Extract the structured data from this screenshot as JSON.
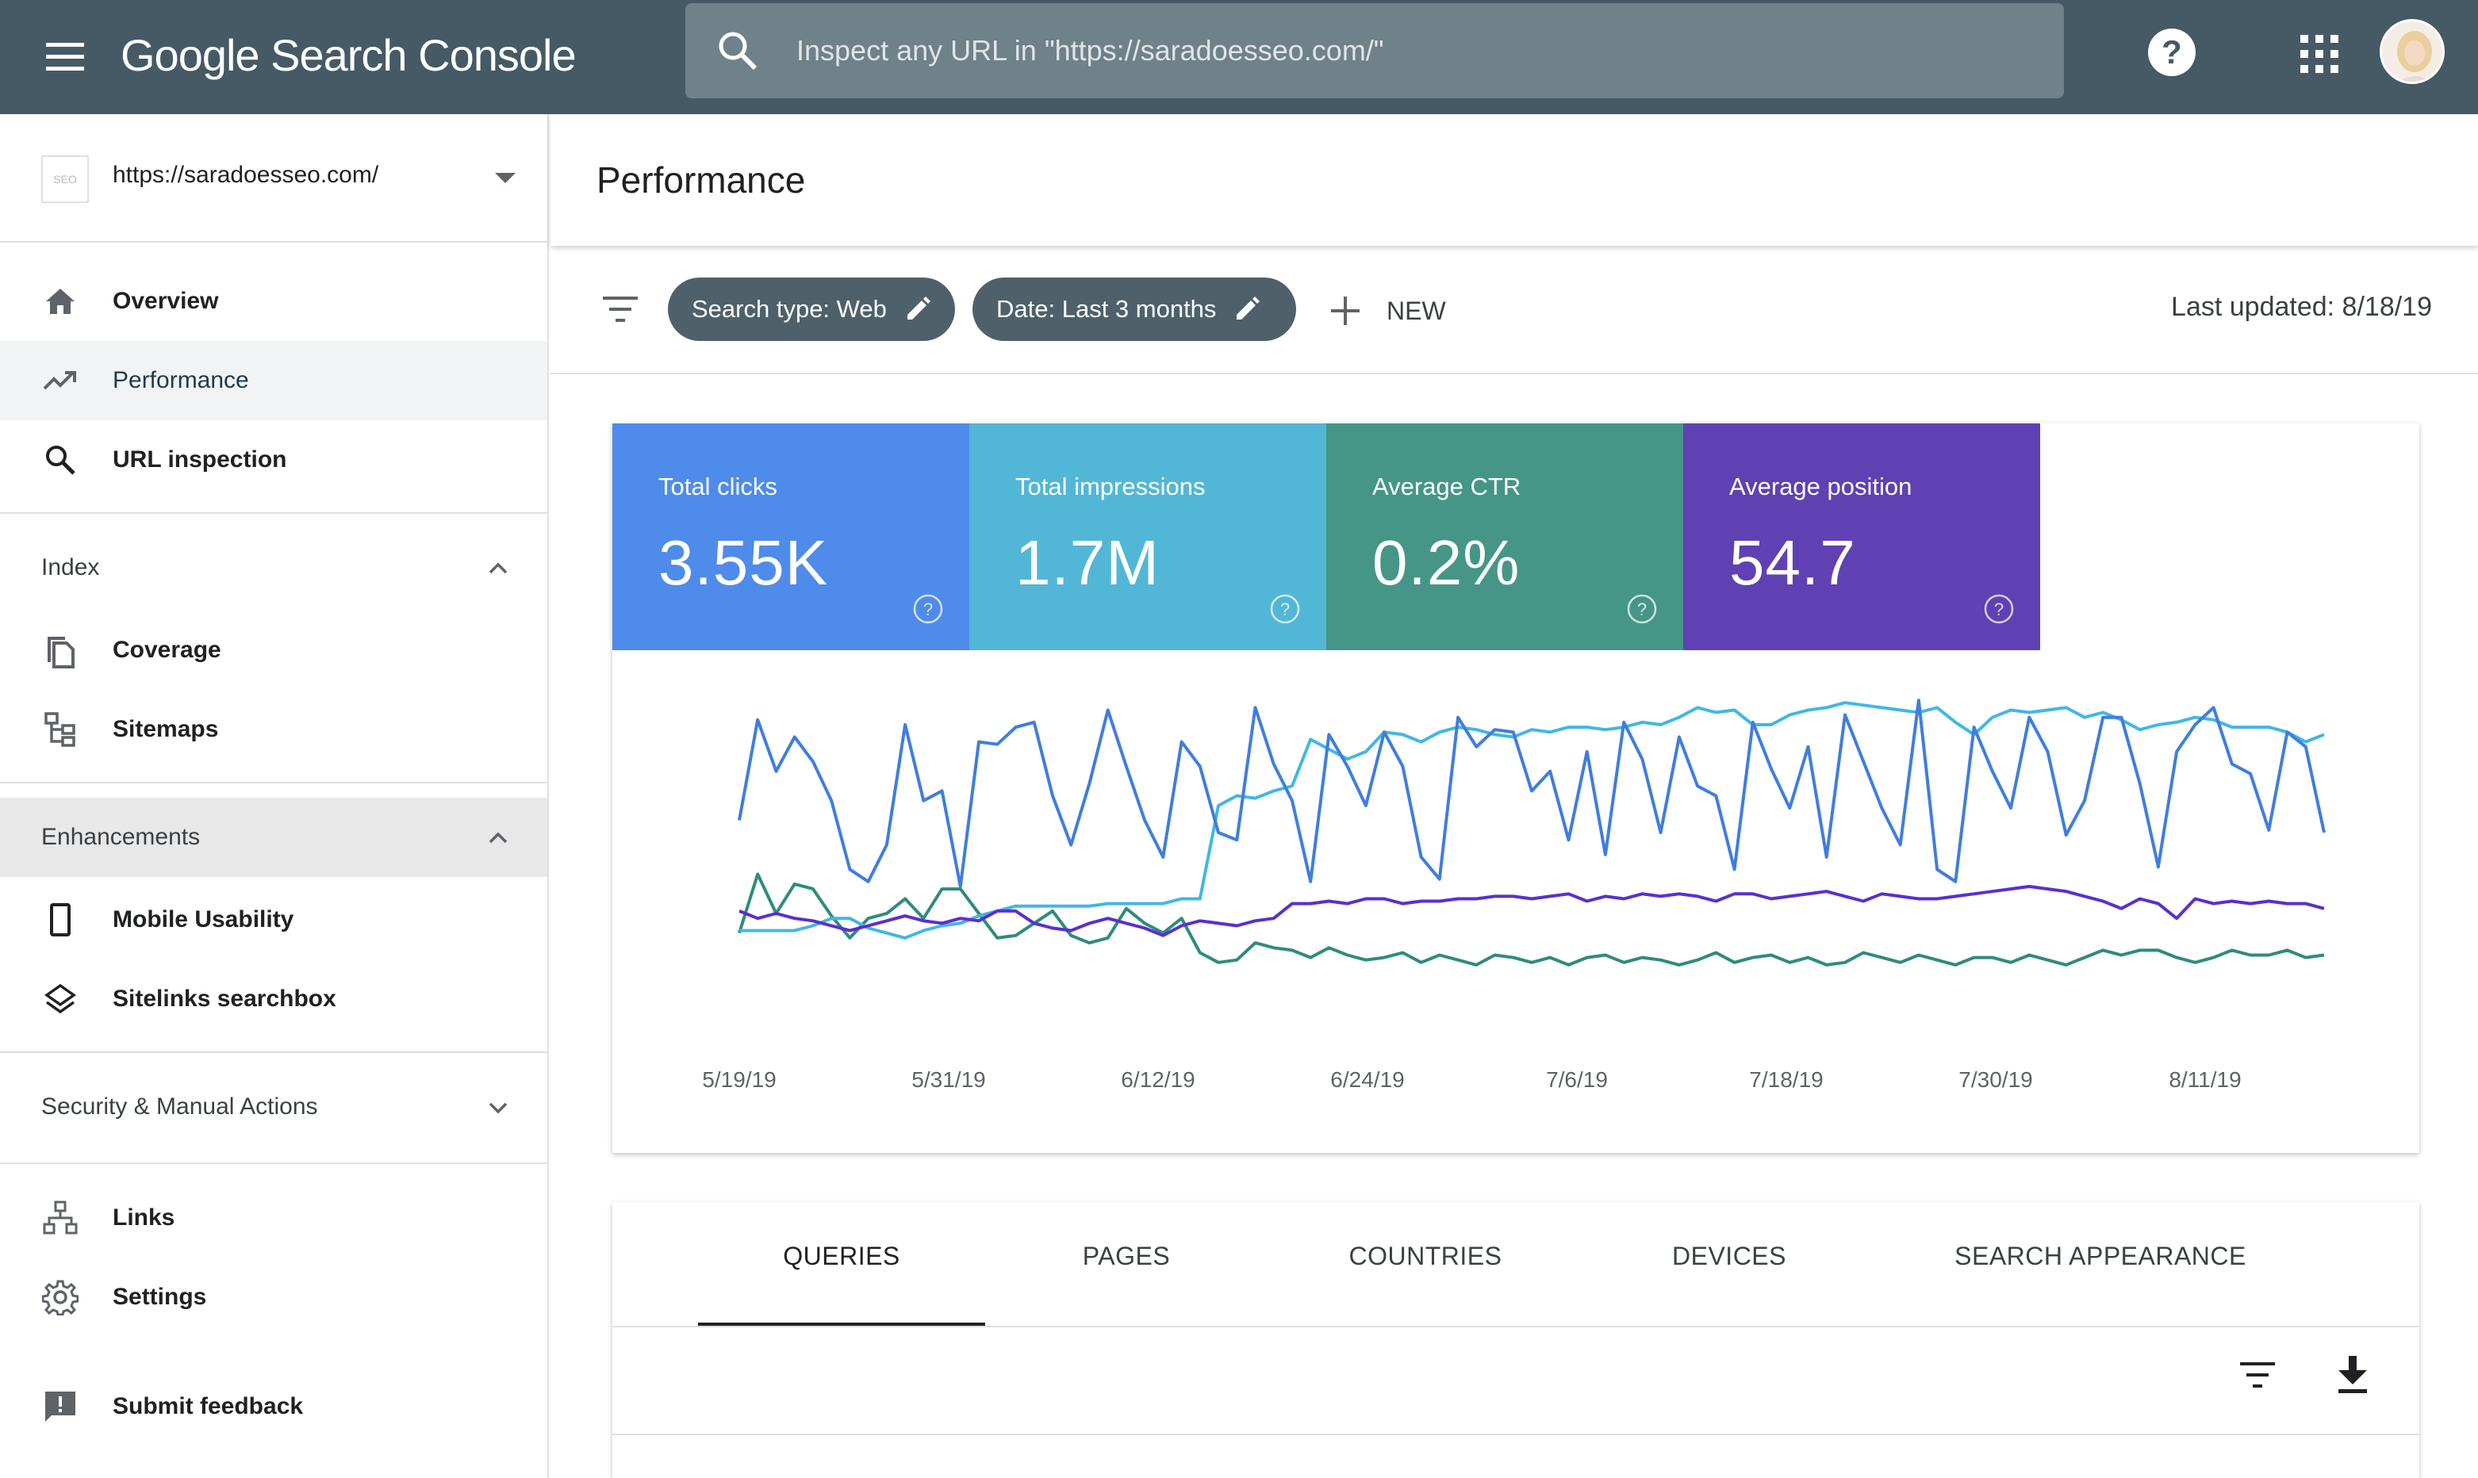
{
  "app": {
    "title": "Google Search Console",
    "search_placeholder": "Inspect any URL in \"https://saradoesseo.com/\""
  },
  "sidebar": {
    "property_logo_text": "SEO",
    "property_url": "https://saradoesseo.com/",
    "items": [
      {
        "label": "Overview",
        "icon": "home-icon"
      },
      {
        "label": "Performance",
        "icon": "trending-up-icon",
        "active": true
      },
      {
        "label": "URL inspection",
        "icon": "search-icon"
      }
    ],
    "index": {
      "label": "Index",
      "items": [
        {
          "label": "Coverage",
          "icon": "copy-pages-icon"
        },
        {
          "label": "Sitemaps",
          "icon": "sitemap-icon"
        }
      ]
    },
    "enhancements": {
      "label": "Enhancements",
      "items": [
        {
          "label": "Mobile Usability",
          "icon": "phone-icon"
        },
        {
          "label": "Sitelinks searchbox",
          "icon": "layers-icon"
        }
      ]
    },
    "security": {
      "label": "Security & Manual Actions"
    },
    "bottom_items": [
      {
        "label": "Links",
        "icon": "hierarchy-icon"
      },
      {
        "label": "Settings",
        "icon": "gear-icon"
      },
      {
        "label": "Submit feedback",
        "icon": "feedback-icon"
      }
    ]
  },
  "main": {
    "page_title": "Performance",
    "filters": {
      "search_type": "Search type: Web",
      "date": "Date: Last 3 months",
      "new_label": "NEW",
      "last_updated": "Last updated: 8/18/19"
    },
    "metrics": [
      {
        "label": "Total clicks",
        "value": "3.55K",
        "color": "#4f8bea"
      },
      {
        "label": "Total impressions",
        "value": "1.7M",
        "color": "#52b7d6"
      },
      {
        "label": "Average CTR",
        "value": "0.2%",
        "color": "#459686"
      },
      {
        "label": "Average position",
        "value": "54.7",
        "color": "#5f41b3"
      }
    ],
    "tabs": [
      "QUERIES",
      "PAGES",
      "COUNTRIES",
      "DEVICES",
      "SEARCH APPEARANCE"
    ],
    "active_tab": "QUERIES"
  },
  "chart_data": {
    "type": "line",
    "x_tick_labels": [
      "5/19/19",
      "5/31/19",
      "6/12/19",
      "6/24/19",
      "7/6/19",
      "7/18/19",
      "7/30/19",
      "8/11/19"
    ],
    "x_range": [
      "5/19/19",
      "8/18/19"
    ],
    "y_axis_shown": false,
    "grid": false,
    "series": [
      {
        "name": "Total clicks",
        "color": "#3f7de0",
        "values": [
          50,
          91,
          70,
          84,
          74,
          58,
          30,
          25,
          40,
          89,
          58,
          62,
          23,
          82,
          81,
          88,
          90,
          60,
          40,
          65,
          95,
          72,
          50,
          35,
          82,
          72,
          45,
          42,
          96,
          73,
          58,
          25,
          85,
          72,
          56,
          86,
          72,
          35,
          26,
          92,
          80,
          87,
          86,
          62,
          70,
          42,
          78,
          36,
          90,
          75,
          45,
          84,
          64,
          60,
          30,
          90,
          71,
          55,
          80,
          35,
          93,
          74,
          55,
          40,
          99,
          30,
          25,
          88,
          70,
          55,
          92,
          78,
          44,
          58,
          92,
          92,
          65,
          31,
          78,
          89,
          96,
          73,
          69,
          46,
          86,
          80,
          45
        ]
      },
      {
        "name": "Total impressions",
        "color": "#41b7e4",
        "values": [
          5,
          5,
          5,
          5,
          7,
          10,
          10,
          6,
          4,
          2,
          5,
          7,
          8,
          11,
          13,
          15,
          15,
          15,
          15,
          15,
          16,
          16,
          16,
          16,
          18,
          18,
          56,
          60,
          59,
          62,
          64,
          83,
          79,
          75,
          78,
          86,
          85,
          82,
          86,
          88,
          87,
          85,
          84,
          87,
          86,
          88,
          88,
          87,
          88,
          90,
          89,
          92,
          96,
          94,
          95,
          89,
          89,
          93,
          95,
          96,
          98,
          97,
          96,
          95,
          94,
          96,
          90,
          85,
          92,
          95,
          94,
          95,
          96,
          92,
          94,
          91,
          87,
          89,
          90,
          92,
          91,
          88,
          88,
          88,
          86,
          82,
          85
        ]
      },
      {
        "name": "Average CTR",
        "color": "#2f8b7e",
        "values": [
          4,
          28,
          12,
          24,
          22,
          11,
          2,
          10,
          12,
          18,
          10,
          22,
          22,
          12,
          2,
          3,
          8,
          13,
          3,
          0,
          2,
          14,
          8,
          4,
          10,
          -4,
          -8,
          -7,
          0,
          -2,
          -3,
          -6,
          -2,
          -5,
          -7,
          -6,
          -4,
          -8,
          -5,
          -7,
          -9,
          -5,
          -6,
          -8,
          -6,
          -9,
          -6,
          -5,
          -8,
          -6,
          -7,
          -9,
          -7,
          -4,
          -8,
          -6,
          -5,
          -8,
          -6,
          -9,
          -8,
          -4,
          -6,
          -8,
          -5,
          -7,
          -9,
          -6,
          -6,
          -8,
          -5,
          -7,
          -9,
          -6,
          -3,
          -5,
          -3,
          -3,
          -6,
          -8,
          -6,
          -3,
          -5,
          -5,
          -3,
          -6,
          -5
        ]
      },
      {
        "name": "Average position",
        "color": "#5a2fd0",
        "values": [
          13,
          10,
          12,
          10,
          9,
          7,
          5,
          7,
          9,
          11,
          9,
          8,
          10,
          9,
          13,
          13,
          8,
          6,
          5,
          8,
          10,
          8,
          6,
          3,
          7,
          9,
          8,
          7,
          9,
          10,
          16,
          16,
          17,
          16,
          18,
          18,
          16,
          17,
          17,
          18,
          18,
          19,
          19,
          18,
          19,
          20,
          17,
          19,
          18,
          20,
          19,
          20,
          19,
          17,
          20,
          20,
          18,
          19,
          20,
          21,
          19,
          17,
          20,
          19,
          18,
          18,
          19,
          20,
          21,
          22,
          23,
          22,
          21,
          19,
          17,
          14,
          18,
          16,
          10,
          18,
          16,
          17,
          16,
          17,
          16,
          16,
          14
        ]
      }
    ]
  }
}
